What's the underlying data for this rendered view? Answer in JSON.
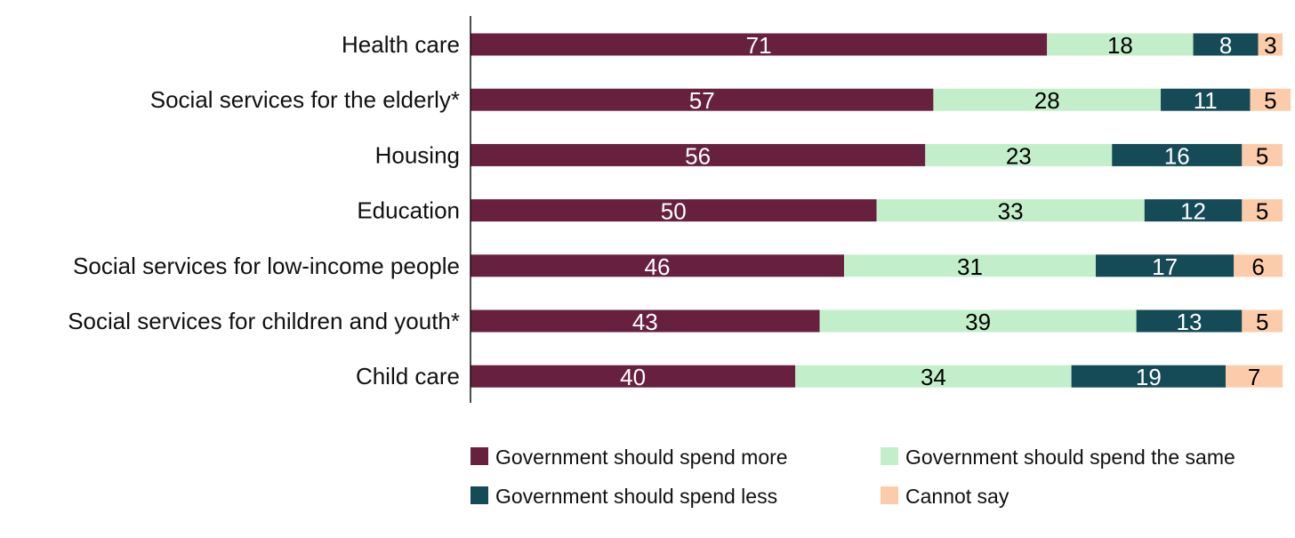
{
  "chart_data": {
    "type": "bar",
    "orientation": "horizontal",
    "stacked": true,
    "title": "",
    "xlabel": "",
    "ylabel": "",
    "xlim": [
      0,
      100
    ],
    "categories": [
      "Health care",
      "Social services for the elderly*",
      "Housing",
      "Education",
      "Social services for low-income people",
      "Social services for children and youth*",
      "Child care"
    ],
    "series": [
      {
        "name": "Government should spend more",
        "color": "#67213F",
        "label_color": "#ffffff",
        "values": [
          71,
          57,
          56,
          50,
          46,
          43,
          40
        ]
      },
      {
        "name": "Government should spend the same",
        "color": "#C2EFCA",
        "label_color": "#000000",
        "values": [
          18,
          28,
          23,
          33,
          31,
          39,
          34
        ]
      },
      {
        "name": "Government should spend less",
        "color": "#154A57",
        "label_color": "#ffffff",
        "values": [
          8,
          11,
          16,
          12,
          17,
          13,
          19
        ]
      },
      {
        "name": "Cannot say",
        "color": "#FCCCAA",
        "label_color": "#000000",
        "values": [
          3,
          5,
          5,
          5,
          6,
          5,
          7
        ]
      }
    ],
    "legend_position": "bottom",
    "grid": false
  }
}
